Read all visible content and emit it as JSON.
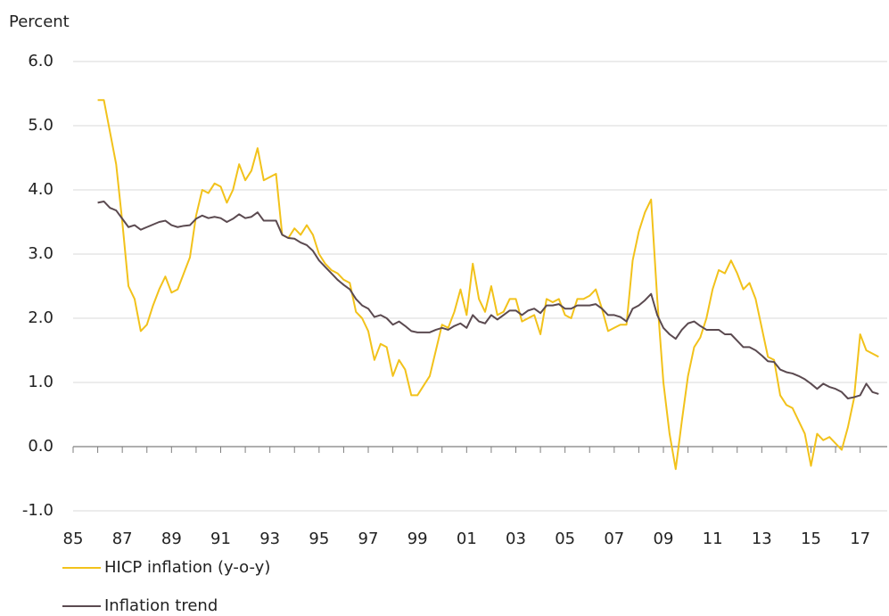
{
  "chart_data": {
    "type": "line",
    "y_label": "Percent",
    "xlim": [
      1985,
      2018.1
    ],
    "ylim": [
      -1,
      6
    ],
    "yticks": [
      {
        "value": -1,
        "label": "-1.0"
      },
      {
        "value": 0,
        "label": "0.0"
      },
      {
        "value": 1,
        "label": "1.0"
      },
      {
        "value": 2,
        "label": "2.0"
      },
      {
        "value": 3,
        "label": "3.0"
      },
      {
        "value": 4,
        "label": "4.0"
      },
      {
        "value": 5,
        "label": "5.0"
      },
      {
        "value": 6,
        "label": "6.0"
      }
    ],
    "xticks": [
      {
        "value": 1985,
        "label": "85"
      },
      {
        "value": 1987,
        "label": "87"
      },
      {
        "value": 1989,
        "label": "89"
      },
      {
        "value": 1991,
        "label": "91"
      },
      {
        "value": 1993,
        "label": "93"
      },
      {
        "value": 1995,
        "label": "95"
      },
      {
        "value": 1997,
        "label": "97"
      },
      {
        "value": 1999,
        "label": "99"
      },
      {
        "value": 2001,
        "label": "01"
      },
      {
        "value": 2003,
        "label": "03"
      },
      {
        "value": 2005,
        "label": "05"
      },
      {
        "value": 2007,
        "label": "07"
      },
      {
        "value": 2009,
        "label": "09"
      },
      {
        "value": 2011,
        "label": "11"
      },
      {
        "value": 2013,
        "label": "13"
      },
      {
        "value": 2015,
        "label": "15"
      },
      {
        "value": 2017,
        "label": "17"
      }
    ],
    "xminorticks": [
      1986,
      1988,
      1990,
      1992,
      1994,
      1996,
      1998,
      2000,
      2002,
      2004,
      2006,
      2008,
      2010,
      2012,
      2014,
      2016
    ],
    "grid": true,
    "x": [
      1986,
      1986.25,
      1986.5,
      1986.75,
      1987,
      1987.25,
      1987.5,
      1987.75,
      1988,
      1988.25,
      1988.5,
      1988.75,
      1989,
      1989.25,
      1989.5,
      1989.75,
      1990,
      1990.25,
      1990.5,
      1990.75,
      1991,
      1991.25,
      1991.5,
      1991.75,
      1992,
      1992.25,
      1992.5,
      1992.75,
      1993,
      1993.25,
      1993.5,
      1993.75,
      1994,
      1994.25,
      1994.5,
      1994.75,
      1995,
      1995.25,
      1995.5,
      1995.75,
      1996,
      1996.25,
      1996.5,
      1996.75,
      1997,
      1997.25,
      1997.5,
      1997.75,
      1998,
      1998.25,
      1998.5,
      1998.75,
      1999,
      1999.25,
      1999.5,
      1999.75,
      2000,
      2000.25,
      2000.5,
      2000.75,
      2001,
      2001.25,
      2001.5,
      2001.75,
      2002,
      2002.25,
      2002.5,
      2002.75,
      2003,
      2003.25,
      2003.5,
      2003.75,
      2004,
      2004.25,
      2004.5,
      2004.75,
      2005,
      2005.25,
      2005.5,
      2005.75,
      2006,
      2006.25,
      2006.5,
      2006.75,
      2007,
      2007.25,
      2007.5,
      2007.75,
      2008,
      2008.25,
      2008.5,
      2008.75,
      2009,
      2009.25,
      2009.5,
      2009.75,
      2010,
      2010.25,
      2010.5,
      2010.75,
      2011,
      2011.25,
      2011.5,
      2011.75,
      2012,
      2012.25,
      2012.5,
      2012.75,
      2013,
      2013.25,
      2013.5,
      2013.75,
      2014,
      2014.25,
      2014.5,
      2014.75,
      2015,
      2015.25,
      2015.5,
      2015.75,
      2016,
      2016.25,
      2016.5,
      2016.75,
      2017,
      2017.25,
      2017.5,
      2017.75
    ],
    "series": [
      {
        "name": "HICP inflation (y-o-y)",
        "color": "#f2c21b",
        "values": [
          5.4,
          5.4,
          4.9,
          4.4,
          3.5,
          2.5,
          2.3,
          1.8,
          1.9,
          2.2,
          2.45,
          2.65,
          2.4,
          2.45,
          2.7,
          2.95,
          3.6,
          4.0,
          3.95,
          4.1,
          4.05,
          3.8,
          4.0,
          4.4,
          4.15,
          4.3,
          4.65,
          4.15,
          4.2,
          4.25,
          3.3,
          3.25,
          3.4,
          3.3,
          3.45,
          3.3,
          3.0,
          2.85,
          2.75,
          2.7,
          2.6,
          2.55,
          2.1,
          2.0,
          1.8,
          1.35,
          1.6,
          1.55,
          1.1,
          1.35,
          1.2,
          0.8,
          0.8,
          0.95,
          1.1,
          1.5,
          1.9,
          1.85,
          2.1,
          2.45,
          2.05,
          2.85,
          2.3,
          2.1,
          2.5,
          2.05,
          2.1,
          2.3,
          2.3,
          1.95,
          2.0,
          2.05,
          1.75,
          2.3,
          2.25,
          2.3,
          2.05,
          2.0,
          2.3,
          2.3,
          2.35,
          2.45,
          2.15,
          1.8,
          1.85,
          1.9,
          1.9,
          2.9,
          3.35,
          3.65,
          3.85,
          2.3,
          1.0,
          0.2,
          -0.35,
          0.4,
          1.1,
          1.55,
          1.7,
          2.0,
          2.45,
          2.75,
          2.7,
          2.9,
          2.7,
          2.45,
          2.55,
          2.3,
          1.85,
          1.4,
          1.35,
          0.8,
          0.65,
          0.6,
          0.4,
          0.2,
          -0.3,
          0.2,
          0.1,
          0.15,
          0.05,
          -0.05,
          0.3,
          0.75,
          1.75,
          1.5,
          1.45,
          1.4
        ]
      },
      {
        "name": "Inflation trend",
        "color": "#5b4a50",
        "values": [
          3.8,
          3.82,
          3.72,
          3.68,
          3.55,
          3.42,
          3.45,
          3.38,
          3.42,
          3.46,
          3.5,
          3.52,
          3.45,
          3.42,
          3.44,
          3.45,
          3.55,
          3.6,
          3.56,
          3.58,
          3.56,
          3.5,
          3.55,
          3.62,
          3.56,
          3.58,
          3.65,
          3.52,
          3.52,
          3.52,
          3.3,
          3.25,
          3.24,
          3.18,
          3.14,
          3.05,
          2.9,
          2.8,
          2.7,
          2.6,
          2.52,
          2.45,
          2.3,
          2.2,
          2.15,
          2.02,
          2.05,
          2.0,
          1.9,
          1.95,
          1.88,
          1.8,
          1.78,
          1.78,
          1.78,
          1.82,
          1.85,
          1.82,
          1.88,
          1.92,
          1.85,
          2.05,
          1.95,
          1.92,
          2.05,
          1.98,
          2.05,
          2.12,
          2.12,
          2.05,
          2.12,
          2.15,
          2.08,
          2.2,
          2.2,
          2.22,
          2.15,
          2.15,
          2.2,
          2.2,
          2.2,
          2.22,
          2.15,
          2.05,
          2.05,
          2.02,
          1.95,
          2.15,
          2.2,
          2.28,
          2.38,
          2.05,
          1.85,
          1.75,
          1.68,
          1.82,
          1.92,
          1.95,
          1.88,
          1.82,
          1.82,
          1.82,
          1.75,
          1.75,
          1.65,
          1.55,
          1.55,
          1.5,
          1.42,
          1.33,
          1.32,
          1.2,
          1.16,
          1.14,
          1.1,
          1.05,
          0.98,
          0.9,
          0.98,
          0.93,
          0.9,
          0.85,
          0.75,
          0.77,
          0.8,
          0.98,
          0.85,
          0.82
        ]
      }
    ]
  }
}
